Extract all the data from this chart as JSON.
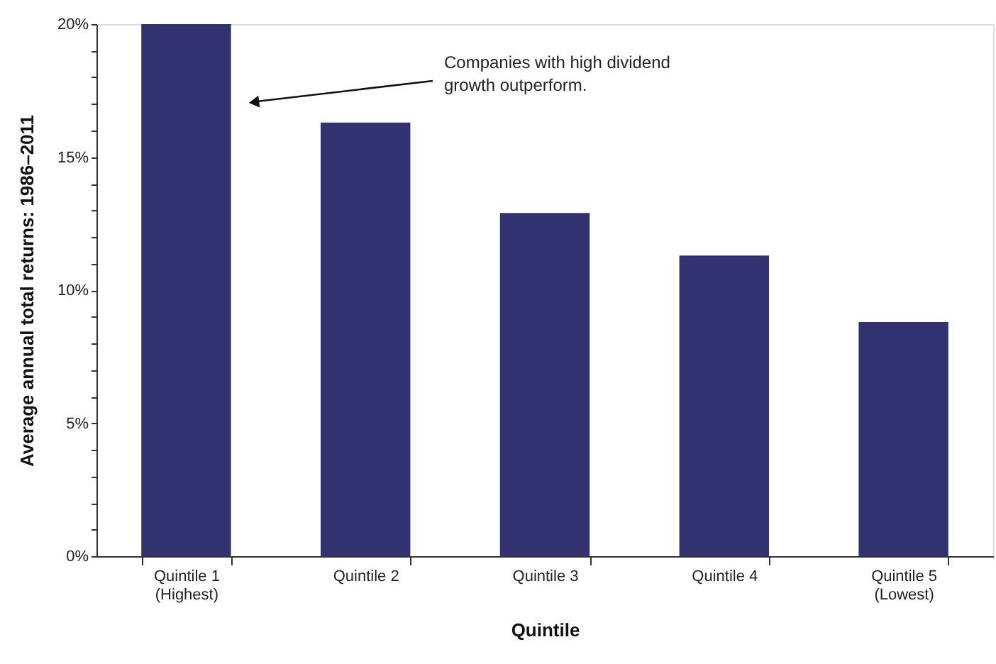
{
  "chart_data": {
    "type": "bar",
    "xlabel": "Quintile",
    "ylabel": "Average annual total returns: 1986–2011",
    "categories": [
      "Quintile 1\n(Highest)",
      "Quintile 2",
      "Quintile 3",
      "Quintile 4",
      "Quintile 5\n(Lowest)"
    ],
    "values": [
      20.0,
      16.3,
      12.9,
      11.3,
      8.8
    ],
    "color": "#333270",
    "ylim": [
      0,
      20
    ],
    "yticks": [
      {
        "value": 0,
        "label": "0%"
      },
      {
        "value": 1,
        "label": null
      },
      {
        "value": 2,
        "label": null
      },
      {
        "value": 3,
        "label": null
      },
      {
        "value": 4,
        "label": null
      },
      {
        "value": 5,
        "label": "5%"
      },
      {
        "value": 6,
        "label": null
      },
      {
        "value": 7,
        "label": null
      },
      {
        "value": 8,
        "label": null
      },
      {
        "value": 9,
        "label": null
      },
      {
        "value": 10,
        "label": "10%"
      },
      {
        "value": 11,
        "label": null
      },
      {
        "value": 12,
        "label": null
      },
      {
        "value": 13,
        "label": null
      },
      {
        "value": 14,
        "label": null
      },
      {
        "value": 15,
        "label": "15%"
      },
      {
        "value": 16,
        "label": null
      },
      {
        "value": 17,
        "label": null
      },
      {
        "value": 18,
        "label": null
      },
      {
        "value": 19,
        "label": null
      },
      {
        "value": 20,
        "label": "20%"
      }
    ],
    "annotations": [
      "Companies with high dividend\ngrowth outperform."
    ],
    "grid": false
  }
}
